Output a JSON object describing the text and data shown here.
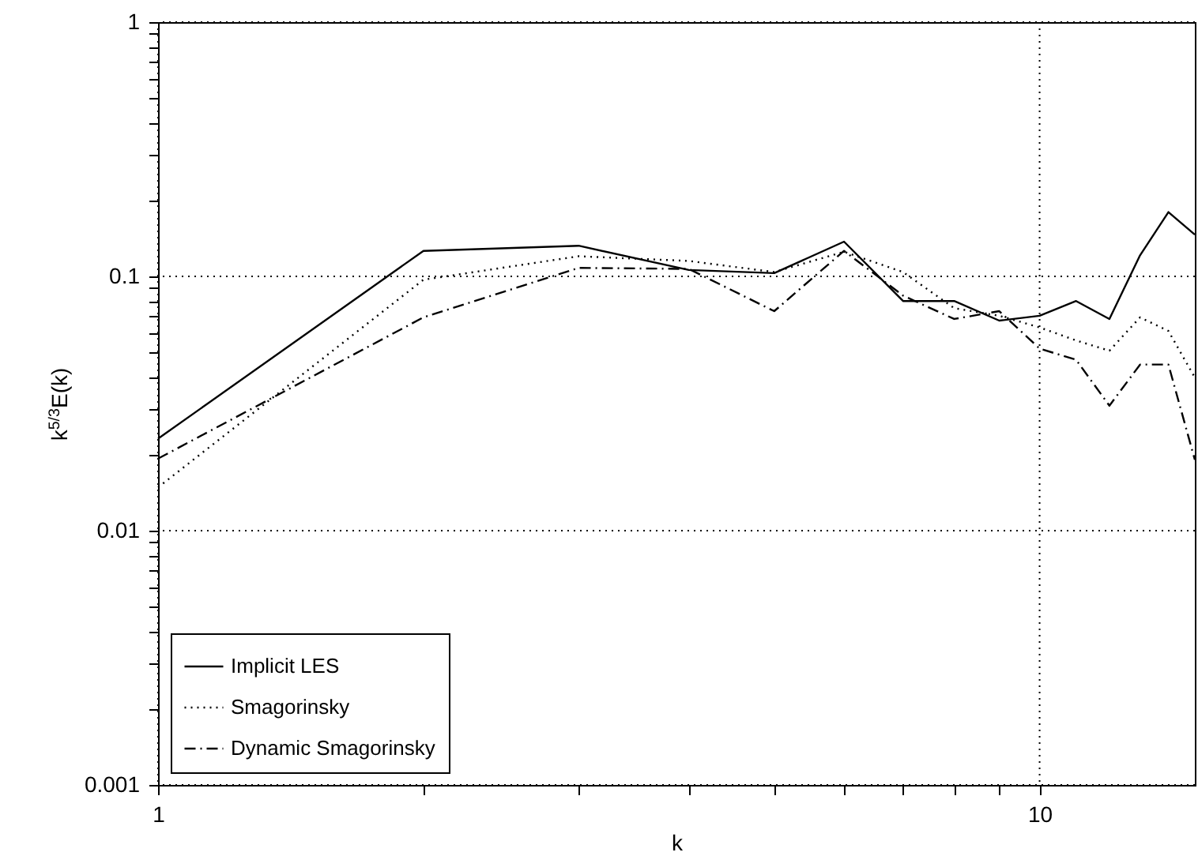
{
  "chart_data": {
    "type": "line",
    "xlabel": "k",
    "ylabel": "k$^{5/3}$E(k)",
    "x": [
      1,
      2,
      3,
      4,
      5,
      6,
      7,
      8,
      9,
      10,
      11,
      12,
      13,
      14,
      15
    ],
    "series": [
      {
        "name": "Implicit LES",
        "color": "#000000",
        "line_style": "solid",
        "values": [
          0.023,
          0.126,
          0.132,
          0.106,
          0.103,
          0.137,
          0.08,
          0.08,
          0.067,
          0.07,
          0.08,
          0.068,
          0.121,
          0.179,
          0.146
        ]
      },
      {
        "name": "Smagorinsky",
        "color": "#000000",
        "line_style": "dotted",
        "values": [
          0.0148,
          0.097,
          0.12,
          0.115,
          0.104,
          0.125,
          0.104,
          0.075,
          0.07,
          0.063,
          0.056,
          0.051,
          0.069,
          0.061,
          0.04
        ]
      },
      {
        "name": "Dynamic Smagorinsky",
        "color": "#000000",
        "line_style": "dashdot",
        "values": [
          0.0192,
          0.069,
          0.108,
          0.107,
          0.073,
          0.126,
          0.084,
          0.068,
          0.073,
          0.052,
          0.047,
          0.031,
          0.045,
          0.045,
          0.019
        ]
      }
    ],
    "log": "xy",
    "xlim": [
      1,
      15
    ],
    "ylim": [
      0.001,
      1
    ],
    "xticks": [
      1,
      {
        "value": 2,
        "label": null
      },
      {
        "value": 3,
        "label": null
      },
      {
        "value": 4,
        "label": null
      },
      {
        "value": 5,
        "label": null
      },
      {
        "value": 6,
        "label": null
      },
      {
        "value": 7,
        "label": null
      },
      {
        "value": 8,
        "label": null
      },
      {
        "value": 9,
        "label": null
      },
      10
    ],
    "yticks": [
      0.001,
      {
        "value": 0.002,
        "label": null
      },
      {
        "value": 0.003,
        "label": null
      },
      {
        "value": 0.004,
        "label": null
      },
      {
        "value": 0.005,
        "label": null
      },
      {
        "value": 0.006,
        "label": null
      },
      {
        "value": 0.007,
        "label": null
      },
      {
        "value": 0.008,
        "label": null
      },
      {
        "value": 0.009,
        "label": null
      },
      0.01,
      {
        "value": 0.02,
        "label": null
      },
      {
        "value": 0.03,
        "label": null
      },
      {
        "value": 0.04,
        "label": null
      },
      {
        "value": 0.05,
        "label": null
      },
      {
        "value": 0.06,
        "label": null
      },
      {
        "value": 0.07,
        "label": null
      },
      {
        "value": 0.08,
        "label": null
      },
      {
        "value": 0.09,
        "label": null
      },
      0.1,
      {
        "value": 0.2,
        "label": null
      },
      {
        "value": 0.3,
        "label": null
      },
      {
        "value": 0.4,
        "label": null
      },
      {
        "value": 0.5,
        "label": null
      },
      {
        "value": 0.6,
        "label": null
      },
      {
        "value": 0.7,
        "label": null
      },
      {
        "value": 0.8,
        "label": null
      },
      {
        "value": 0.9,
        "label": null
      },
      1
    ],
    "grid": true,
    "legend": "bottom left",
    "marker": "none"
  }
}
